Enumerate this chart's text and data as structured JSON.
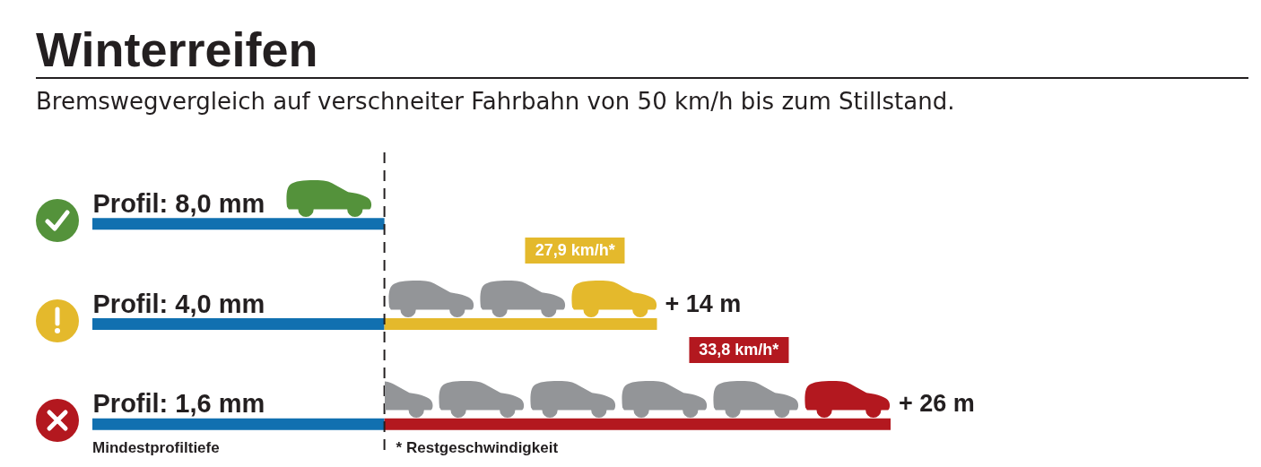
{
  "chart_data": {
    "type": "bar",
    "orientation": "horizontal",
    "stacked": true,
    "title": "Winterreifen",
    "subtitle": "Bremswegvergleich auf verschneiter Fahrbahn von 50 km/h bis zum Stillstand.",
    "categories": [
      "Profil: 8,0 mm",
      "Profil: 4,0 mm",
      "Profil: 1,6 mm"
    ],
    "series": [
      {
        "color": "#1170b0",
        "values": [
          15,
          15,
          15
        ]
      },
      {
        "colors": [
          null,
          "#e4b92c",
          "#b3181f"
        ],
        "values": [
          null,
          14,
          26
        ],
        "value_labels": [
          null,
          "+ 14 m",
          "+ 26 m"
        ]
      }
    ],
    "ref_lines": [
      {
        "axis": "x",
        "value": 15,
        "color": "#231f20",
        "line_style": "dashed"
      }
    ],
    "annotations": [
      "27,9 km/h*",
      "33,8 km/h*",
      "Mindestprofiltiefe",
      "* Restgeschwindigkeit"
    ]
  }
}
